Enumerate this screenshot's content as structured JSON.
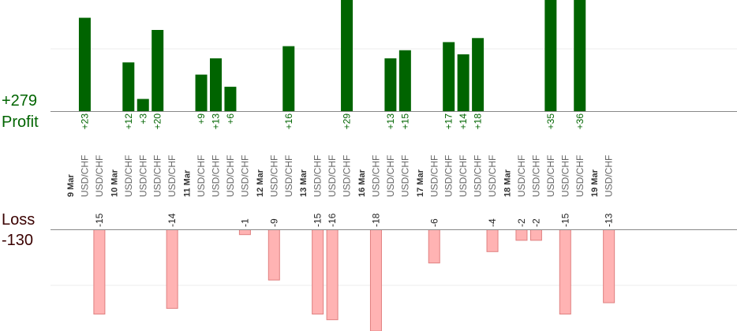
{
  "summary": {
    "profit_total": "+279",
    "profit_label": "Profit",
    "loss_label": "Loss",
    "loss_total": "-130"
  },
  "colors": {
    "profit_text": "#006400",
    "profit_bar": "#006400",
    "loss_text": "#3a0000",
    "loss_bar": "#ffb3b3",
    "loss_bar_edge": "#e08080",
    "axis": "#888888",
    "grid": "#eeeeee",
    "date_text": "#333333",
    "symbol_text": "#666666"
  },
  "chart_data": {
    "type": "bar",
    "title": "",
    "xlabel": "",
    "ylabel": "",
    "profit_ylim": [
      0,
      40
    ],
    "loss_ylim": [
      0,
      16
    ],
    "grid": true,
    "columns": [
      {
        "label": "9 Mar",
        "kind": "date"
      },
      {
        "label": "USD/CHF",
        "kind": "trade",
        "profit": 23
      },
      {
        "label": "USD/CHF",
        "kind": "trade",
        "loss": -15
      },
      {
        "label": "10 Mar",
        "kind": "date"
      },
      {
        "label": "USD/CHF",
        "kind": "trade",
        "profit": 12
      },
      {
        "label": "USD/CHF",
        "kind": "trade",
        "profit": 3
      },
      {
        "label": "USD/CHF",
        "kind": "trade",
        "profit": 20
      },
      {
        "label": "USD/CHF",
        "kind": "trade",
        "loss": -14
      },
      {
        "label": "11 Mar",
        "kind": "date"
      },
      {
        "label": "USD/CHF",
        "kind": "trade",
        "profit": 9
      },
      {
        "label": "USD/CHF",
        "kind": "trade",
        "profit": 13
      },
      {
        "label": "USD/CHF",
        "kind": "trade",
        "profit": 6
      },
      {
        "label": "USD/CHF",
        "kind": "trade",
        "loss": -1
      },
      {
        "label": "12 Mar",
        "kind": "date"
      },
      {
        "label": "USD/CHF",
        "kind": "trade",
        "loss": -9
      },
      {
        "label": "USD/CHF",
        "kind": "trade",
        "profit": 16
      },
      {
        "label": "13 Mar",
        "kind": "date"
      },
      {
        "label": "USD/CHF",
        "kind": "trade",
        "loss": -15
      },
      {
        "label": "USD/CHF",
        "kind": "trade",
        "loss": -16
      },
      {
        "label": "USD/CHF",
        "kind": "trade",
        "profit": 29
      },
      {
        "label": "16 Mar",
        "kind": "date"
      },
      {
        "label": "USD/CHF",
        "kind": "trade",
        "loss": -18
      },
      {
        "label": "USD/CHF",
        "kind": "trade",
        "profit": 13
      },
      {
        "label": "USD/CHF",
        "kind": "trade",
        "profit": 15
      },
      {
        "label": "17 Mar",
        "kind": "date"
      },
      {
        "label": "USD/CHF",
        "kind": "trade",
        "loss": -6
      },
      {
        "label": "USD/CHF",
        "kind": "trade",
        "profit": 17
      },
      {
        "label": "USD/CHF",
        "kind": "trade",
        "profit": 14
      },
      {
        "label": "USD/CHF",
        "kind": "trade",
        "profit": 18
      },
      {
        "label": "USD/CHF",
        "kind": "trade",
        "loss": -4
      },
      {
        "label": "18 Mar",
        "kind": "date"
      },
      {
        "label": "USD/CHF",
        "kind": "trade",
        "loss": -2
      },
      {
        "label": "USD/CHF",
        "kind": "trade",
        "loss": -2
      },
      {
        "label": "USD/CHF",
        "kind": "trade",
        "profit": 35
      },
      {
        "label": "USD/CHF",
        "kind": "trade",
        "loss": -15
      },
      {
        "label": "USD/CHF",
        "kind": "trade",
        "profit": 36
      },
      {
        "label": "19 Mar",
        "kind": "date"
      },
      {
        "label": "USD/CHF",
        "kind": "trade",
        "loss": -13
      }
    ]
  }
}
